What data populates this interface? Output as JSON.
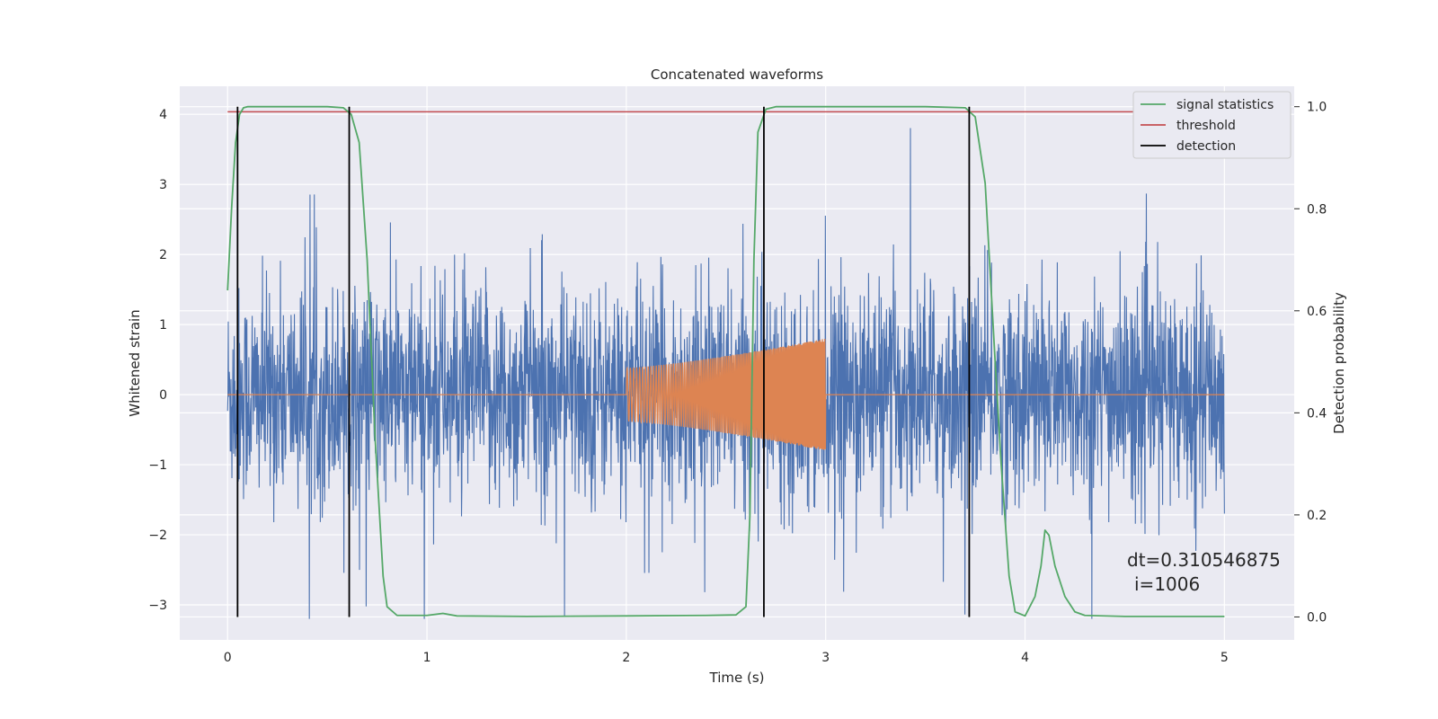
{
  "chart_data": {
    "type": "line",
    "title": "Concatenated waveforms",
    "xlabel": "Time (s)",
    "ylabel": "Whitened strain",
    "y2label": "Detection probability",
    "xlim": [
      -0.24,
      5.35
    ],
    "ylim": [
      -3.5,
      4.4
    ],
    "y2lim": [
      -0.045,
      1.04
    ],
    "x_ticks": [
      0,
      1,
      2,
      3,
      4,
      5
    ],
    "y_ticks": [
      -3,
      -2,
      -1,
      0,
      1,
      2,
      3,
      4
    ],
    "y2_ticks": [
      0.0,
      0.2,
      0.4,
      0.6,
      0.8,
      1.0
    ],
    "grid": true,
    "legend_position": "top-right",
    "legend": [
      {
        "label": "signal statistics",
        "color": "#55a868"
      },
      {
        "label": "threshold",
        "color": "#c44e52"
      },
      {
        "label": "detection",
        "color": "#000000"
      }
    ],
    "series": [
      {
        "role": "noisy-strain",
        "color": "#4c72b0",
        "x_range": [
          0,
          5
        ],
        "amplitude_typical": 1.5,
        "peak_max": 4.1,
        "peak_min": -3.2
      },
      {
        "role": "injected-chirp",
        "color": "#dd8452",
        "x_range": [
          2,
          3
        ],
        "start_amplitude": 0.38,
        "end_amplitude": 0.8
      },
      {
        "name": "signal statistics",
        "axis": "y2",
        "color": "#55a868",
        "x": [
          0,
          0.02,
          0.04,
          0.06,
          0.08,
          0.1,
          0.5,
          0.58,
          0.62,
          0.66,
          0.7,
          0.74,
          0.78,
          0.8,
          0.85,
          1.0,
          1.08,
          1.15,
          1.5,
          2.0,
          2.4,
          2.55,
          2.6,
          2.62,
          2.64,
          2.66,
          2.7,
          2.75,
          3.5,
          3.7,
          3.75,
          3.8,
          3.85,
          3.88,
          3.92,
          3.95,
          4.0,
          4.05,
          4.08,
          4.1,
          4.12,
          4.15,
          4.2,
          4.25,
          4.3,
          4.5,
          5.0
        ],
        "y": [
          0.64,
          0.8,
          0.93,
          0.985,
          0.998,
          1.0,
          1.0,
          0.998,
          0.985,
          0.93,
          0.7,
          0.35,
          0.08,
          0.02,
          0.003,
          0.003,
          0.007,
          0.002,
          0.001,
          0.002,
          0.003,
          0.004,
          0.02,
          0.2,
          0.7,
          0.95,
          0.995,
          1.0,
          1.0,
          0.998,
          0.98,
          0.85,
          0.5,
          0.3,
          0.08,
          0.01,
          0.002,
          0.04,
          0.1,
          0.17,
          0.16,
          0.1,
          0.04,
          0.01,
          0.003,
          0.001,
          0.001
        ]
      },
      {
        "name": "threshold",
        "axis": "y2",
        "color": "#c44e52",
        "x": [
          0,
          5
        ],
        "y": [
          0.99,
          0.99
        ]
      },
      {
        "name": "detection",
        "axis": "y2",
        "color": "#000000",
        "type": "vlines",
        "x": [
          0.05,
          0.61,
          2.69,
          3.72
        ],
        "y_range": [
          0.0,
          1.0
        ]
      }
    ],
    "annotation": {
      "line1": "dt=0.310546875",
      "line2": "i=1006"
    }
  }
}
